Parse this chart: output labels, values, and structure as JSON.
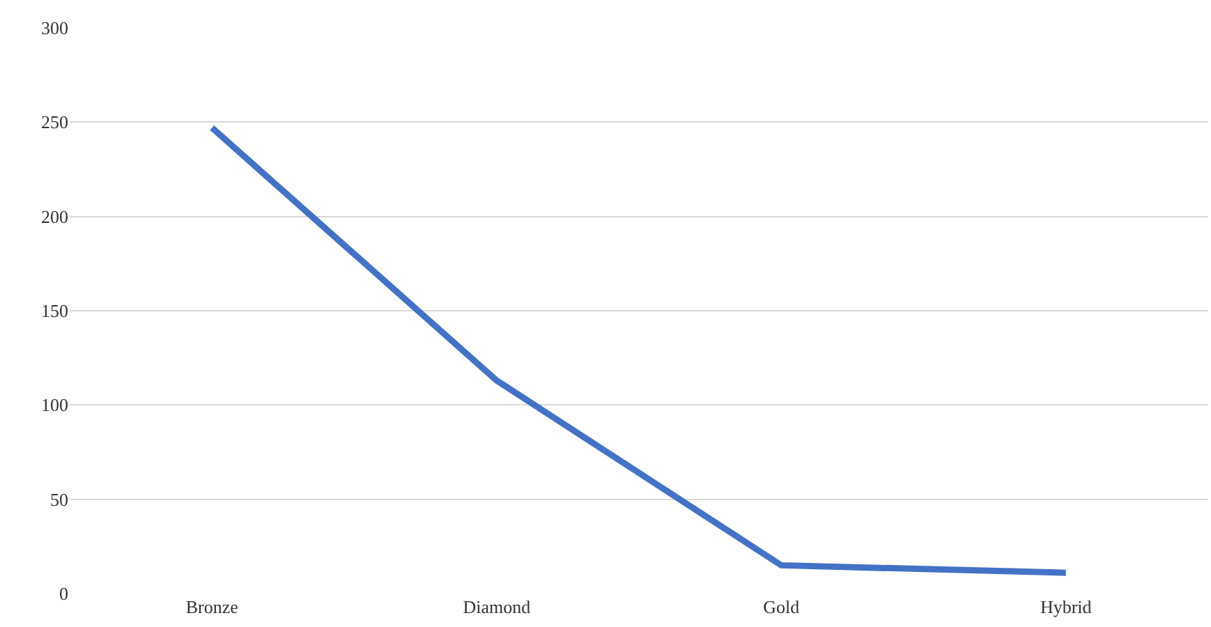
{
  "chart_data": {
    "type": "line",
    "categories": [
      "Bronze",
      "Diamond",
      "Gold",
      "Hybrid"
    ],
    "series": [
      {
        "color": "#4472c4",
        "values": [
          247,
          113,
          15,
          11
        ]
      }
    ],
    "ylim": [
      0,
      300
    ],
    "yticks": [
      0,
      50,
      100,
      150,
      200,
      250,
      300
    ],
    "grid": "y",
    "marker": "none",
    "line_style": "solid"
  }
}
